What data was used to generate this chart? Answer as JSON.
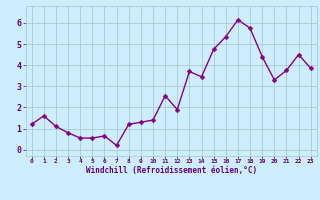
{
  "x": [
    0,
    1,
    2,
    3,
    4,
    5,
    6,
    7,
    8,
    9,
    10,
    11,
    12,
    13,
    14,
    15,
    16,
    17,
    18,
    19,
    20,
    21,
    22,
    23
  ],
  "y": [
    1.2,
    1.6,
    1.1,
    0.8,
    0.55,
    0.55,
    0.65,
    0.2,
    1.2,
    1.3,
    1.4,
    2.55,
    1.9,
    3.7,
    3.45,
    4.75,
    5.35,
    6.15,
    5.75,
    4.4,
    3.3,
    3.75,
    4.5,
    3.85
  ],
  "line_color": "#880088",
  "marker": "D",
  "marker_size": 2.5,
  "bg_color": "#cceeff",
  "grid_color": "#aacccc",
  "xlabel": "Windchill (Refroidissement éolien,°C)",
  "xlabel_color": "#660077",
  "tick_color": "#660077",
  "ylim": [
    -0.3,
    6.8
  ],
  "xlim": [
    -0.5,
    23.5
  ],
  "yticks": [
    0,
    1,
    2,
    3,
    4,
    5,
    6
  ],
  "xticks": [
    0,
    1,
    2,
    3,
    4,
    5,
    6,
    7,
    8,
    9,
    10,
    11,
    12,
    13,
    14,
    15,
    16,
    17,
    18,
    19,
    20,
    21,
    22,
    23
  ],
  "linewidth": 1.0,
  "fig_bg": "#cceeff"
}
